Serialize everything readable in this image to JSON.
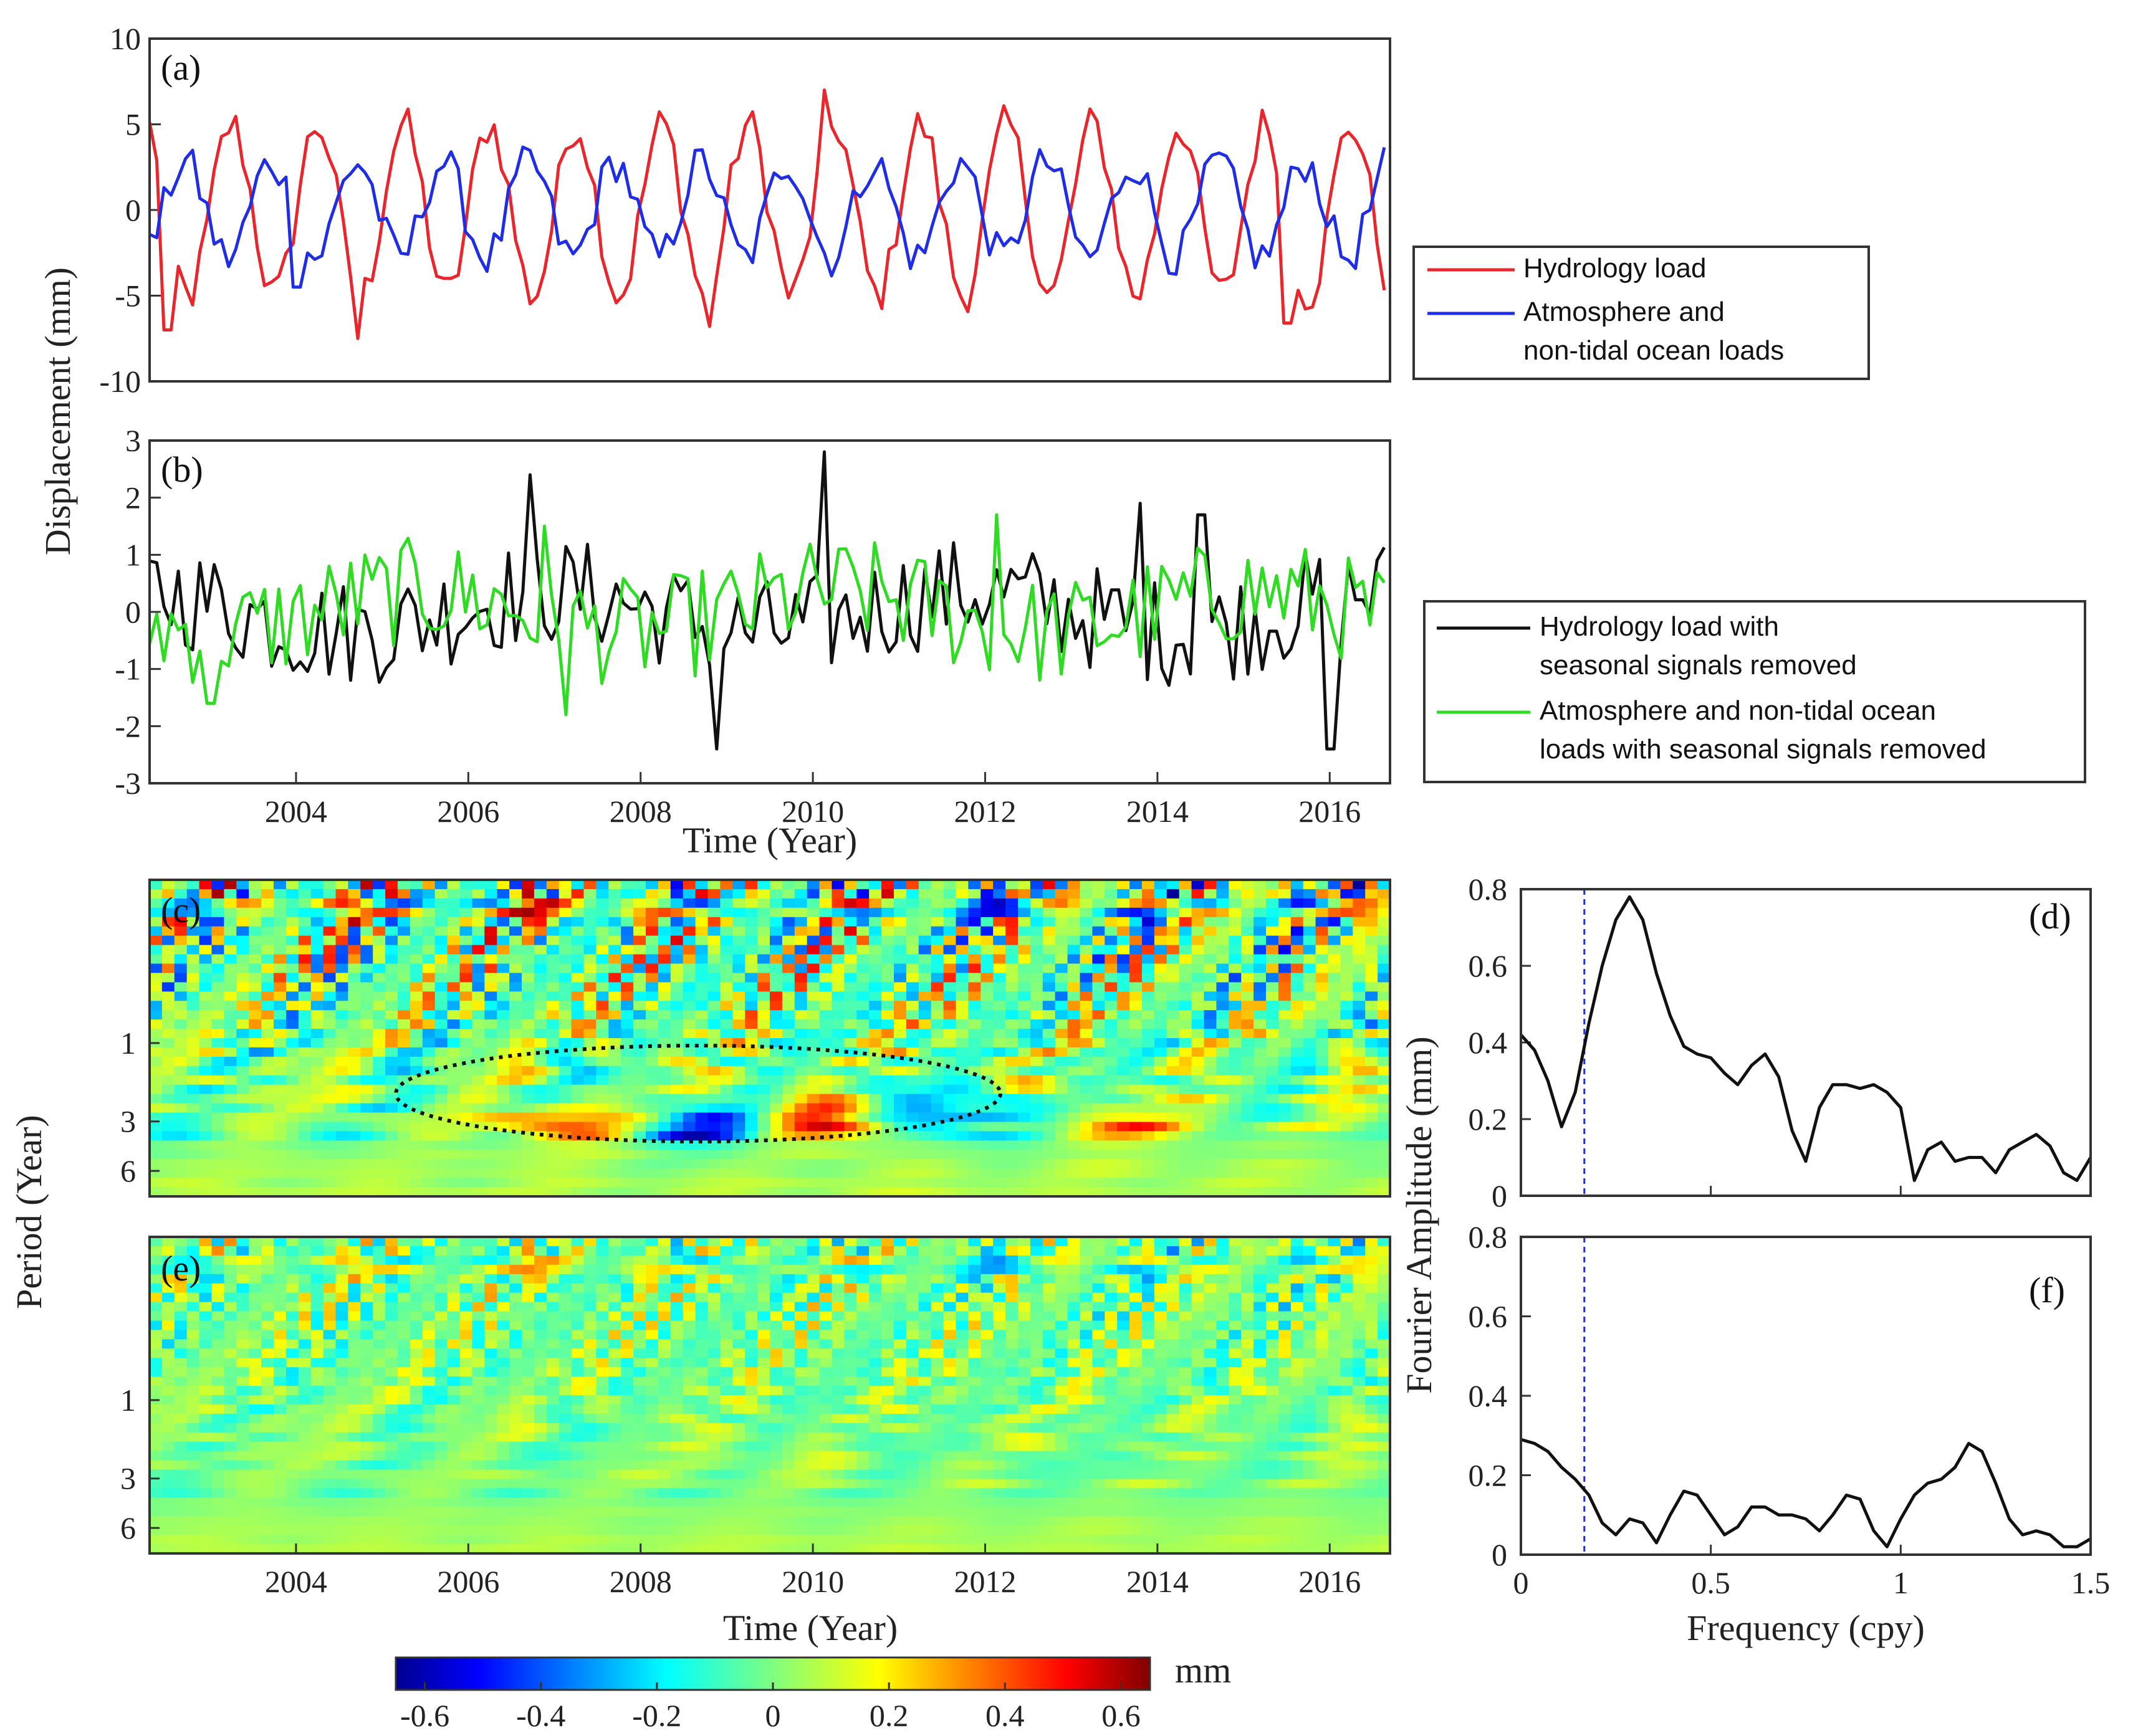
{
  "figure": {
    "shared_ylabel_ab": "Displacement (mm)",
    "shared_ylabel_ce": "Period (Year)",
    "shared_ylabel_df": "Fourier Amplitude (mm)",
    "colorbar": {
      "unit": "mm",
      "ticks": [
        "-0.6",
        "-0.4",
        "-0.2",
        "0",
        "0.2",
        "0.4",
        "0.6"
      ],
      "range": [
        -0.65,
        0.65
      ]
    }
  },
  "chart_data": [
    {
      "id": "a",
      "panel_label": "(a)",
      "type": "line",
      "xlim": [
        2002.3,
        2016.7
      ],
      "ylim": [
        -10,
        10
      ],
      "yticks": [
        "10",
        "5",
        "0",
        "-5",
        "-10"
      ],
      "legend": {
        "placement": "right-outside",
        "entries": [
          {
            "text": [
              "Hydrology load"
            ],
            "color": "#e8262c"
          },
          {
            "text": [
              "Atmosphere and",
              "non-tidal ocean loads"
            ],
            "color": "#1f2ee6"
          }
        ]
      },
      "series": [
        {
          "name": "Hydrology load",
          "color": "#e8262c",
          "amplitude": 5,
          "phase_month": 3,
          "extremes": [
            [
              2010.1,
              7.0
            ],
            [
              2004.7,
              -7.5
            ],
            [
              2002.5,
              -7.0
            ],
            [
              2008.8,
              -6.8
            ],
            [
              2015.5,
              -6.6
            ]
          ]
        },
        {
          "name": "Atmosphere and non-tidal ocean loads",
          "color": "#1f2ee6",
          "amplitude": 2.8,
          "phase_month": 8.5,
          "extremes": [
            [
              2010.8,
              3.0
            ],
            [
              2004.0,
              -4.5
            ]
          ]
        }
      ]
    },
    {
      "id": "b",
      "panel_label": "(b)",
      "type": "line",
      "xlim": [
        2002.3,
        2016.7
      ],
      "ylim": [
        -3,
        3
      ],
      "yticks": [
        "3",
        "2",
        "1",
        "0",
        "-1",
        "-2",
        "-3"
      ],
      "xticks": [
        "2004",
        "2006",
        "2008",
        "2010",
        "2012",
        "2014",
        "2016"
      ],
      "xlabel": "Time (Year)",
      "legend": {
        "placement": "right-outside",
        "entries": [
          {
            "text": [
              "Hydrology load with",
              "seasonal signals removed"
            ],
            "color": "#111111"
          },
          {
            "text": [
              "Atmosphere and non-tidal ocean",
              "loads with seasonal signals removed"
            ],
            "color": "#2fdc23"
          }
        ]
      },
      "series": [
        {
          "name": "Hydrology load with seasonal signals removed",
          "color": "#111111",
          "extremes": [
            [
              2010.1,
              2.8
            ],
            [
              2006.7,
              2.4
            ],
            [
              2008.9,
              -2.4
            ],
            [
              2016.0,
              -2.4
            ],
            [
              2013.8,
              1.9
            ],
            [
              2014.5,
              1.7
            ]
          ]
        },
        {
          "name": "Atmosphere and non-tidal ocean loads with seasonal signals removed",
          "color": "#2fdc23",
          "extremes": [
            [
              2012.1,
              1.7
            ],
            [
              2006.9,
              1.5
            ],
            [
              2007.1,
              -1.8
            ],
            [
              2003.0,
              -1.6
            ]
          ]
        }
      ]
    },
    {
      "id": "c",
      "panel_label": "(c)",
      "type": "heatmap",
      "xlim": [
        2002.3,
        2016.7
      ],
      "yticks": [
        "1",
        "3",
        "6"
      ],
      "annotation": "dotted ellipse around 3-6 year band, 2005.3-2012.2",
      "features": [
        {
          "t": 2007.2,
          "period": 3.5,
          "value": 0.4
        },
        {
          "t": 2008.8,
          "period": 3.5,
          "value": -0.55
        },
        {
          "t": 2010.1,
          "period": 3.5,
          "value": 0.5
        },
        {
          "t": 2011.6,
          "period": 3.0,
          "value": -0.35
        },
        {
          "t": 2013.6,
          "period": 3.5,
          "value": 0.3
        }
      ]
    },
    {
      "id": "d",
      "panel_label": "(d)",
      "type": "line",
      "xlim": [
        0,
        1.5
      ],
      "ylim": [
        0,
        0.8
      ],
      "yticks": [
        "0.8",
        "0.6",
        "0.4",
        "0.2",
        "0"
      ],
      "cutoff_frequency": 0.167,
      "x": [
        0,
        0.036,
        0.071,
        0.107,
        0.143,
        0.179,
        0.214,
        0.25,
        0.286,
        0.321,
        0.357,
        0.393,
        0.429,
        0.464,
        0.5,
        0.536,
        0.571,
        0.607,
        0.643,
        0.679,
        0.714,
        0.75,
        0.786,
        0.821,
        0.857,
        0.893,
        0.929,
        0.964,
        1.0,
        1.036,
        1.071,
        1.107,
        1.143,
        1.179,
        1.214,
        1.25,
        1.286,
        1.321,
        1.357,
        1.393,
        1.429,
        1.464,
        1.5
      ],
      "values": [
        0.42,
        0.38,
        0.3,
        0.18,
        0.27,
        0.45,
        0.6,
        0.72,
        0.78,
        0.72,
        0.58,
        0.47,
        0.39,
        0.37,
        0.36,
        0.32,
        0.29,
        0.34,
        0.37,
        0.31,
        0.17,
        0.09,
        0.23,
        0.29,
        0.29,
        0.28,
        0.29,
        0.27,
        0.23,
        0.04,
        0.12,
        0.14,
        0.09,
        0.1,
        0.1,
        0.06,
        0.12,
        0.14,
        0.16,
        0.13,
        0.06,
        0.04,
        0.1
      ]
    },
    {
      "id": "e",
      "panel_label": "(e)",
      "type": "heatmap",
      "xlim": [
        2002.3,
        2016.7
      ],
      "yticks": [
        "1",
        "3",
        "6"
      ],
      "xticks": [
        "2004",
        "2006",
        "2008",
        "2010",
        "2012",
        "2014",
        "2016"
      ],
      "xlabel": "Time (Year)"
    },
    {
      "id": "f",
      "panel_label": "(f)",
      "type": "line",
      "xlim": [
        0,
        1.5
      ],
      "ylim": [
        0,
        0.8
      ],
      "yticks": [
        "0.8",
        "0.6",
        "0.4",
        "0.2",
        "0"
      ],
      "xticks": [
        "0",
        "0.5",
        "1",
        "1.5"
      ],
      "xlabel": "Frequency (cpy)",
      "cutoff_frequency": 0.167,
      "x": [
        0,
        0.036,
        0.071,
        0.107,
        0.143,
        0.179,
        0.214,
        0.25,
        0.286,
        0.321,
        0.357,
        0.393,
        0.429,
        0.464,
        0.5,
        0.536,
        0.571,
        0.607,
        0.643,
        0.679,
        0.714,
        0.75,
        0.786,
        0.821,
        0.857,
        0.893,
        0.929,
        0.964,
        1.0,
        1.036,
        1.071,
        1.107,
        1.143,
        1.179,
        1.214,
        1.25,
        1.286,
        1.321,
        1.357,
        1.393,
        1.429,
        1.464,
        1.5
      ],
      "values": [
        0.29,
        0.28,
        0.26,
        0.22,
        0.19,
        0.15,
        0.08,
        0.05,
        0.09,
        0.08,
        0.03,
        0.1,
        0.16,
        0.15,
        0.1,
        0.05,
        0.07,
        0.12,
        0.12,
        0.1,
        0.1,
        0.09,
        0.06,
        0.1,
        0.15,
        0.14,
        0.06,
        0.02,
        0.09,
        0.15,
        0.18,
        0.19,
        0.22,
        0.28,
        0.26,
        0.18,
        0.09,
        0.05,
        0.06,
        0.05,
        0.02,
        0.02,
        0.04
      ]
    }
  ]
}
